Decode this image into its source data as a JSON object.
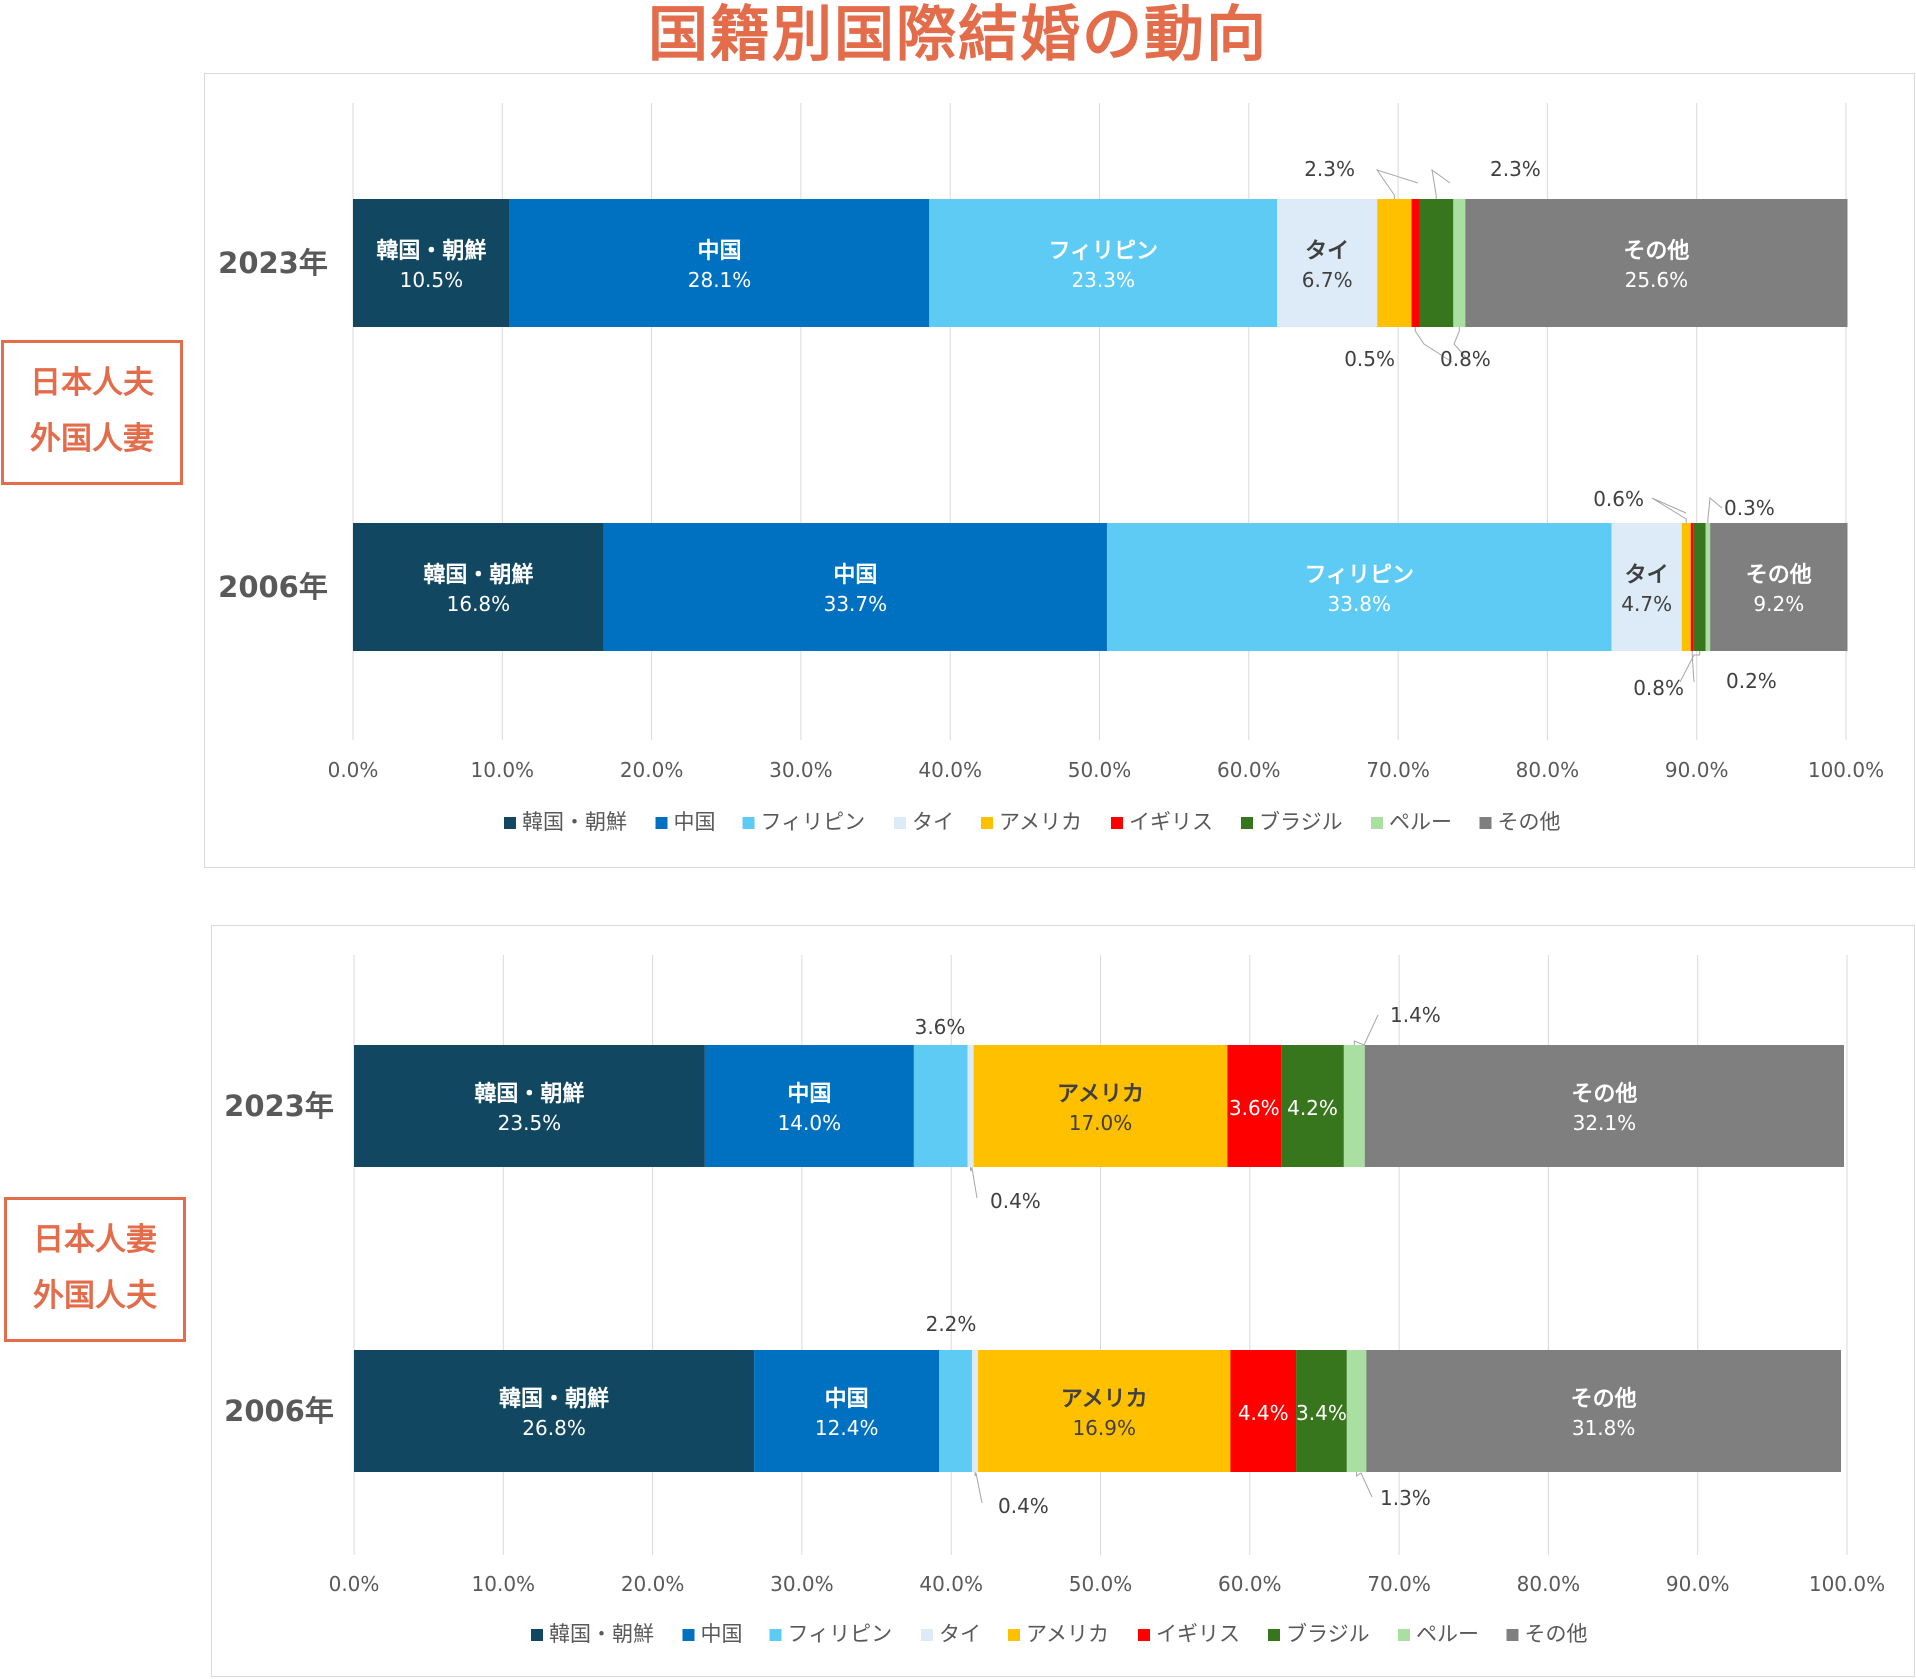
{
  "title": "国籍別国際結婚の動向",
  "colors": {
    "title": "#e36c4b",
    "韓国・朝鮮": "#124761",
    "中国": "#0070c0",
    "フィリピン": "#5ecbf5",
    "タイ": "#dcebf7",
    "アメリカ": "#ffc000",
    "イギリス": "#ff0000",
    "ブラジル": "#38761d",
    "ペルー": "#a9dfa0",
    "その他": "#7f7f7f",
    "grid": "#d9d9d9",
    "axis_text": "#595959",
    "year_text": "#595959"
  },
  "panels": [
    {
      "label_line1": "日本人夫",
      "label_line2": "外国人妻"
    },
    {
      "label_line1": "日本人妻",
      "label_line2": "外国人夫"
    }
  ],
  "chart_data": [
    {
      "type": "bar",
      "stacked": true,
      "orientation": "horizontal",
      "title": "",
      "categories": [
        "2023年",
        "2006年"
      ],
      "series": [
        {
          "name": "韓国・朝鮮",
          "values": [
            10.5,
            16.8
          ]
        },
        {
          "name": "中国",
          "values": [
            28.1,
            33.7
          ]
        },
        {
          "name": "フィリピン",
          "values": [
            23.3,
            33.8
          ]
        },
        {
          "name": "タイ",
          "values": [
            6.7,
            4.7
          ]
        },
        {
          "name": "アメリカ",
          "values": [
            2.3,
            0.6
          ]
        },
        {
          "name": "イギリス",
          "values": [
            0.5,
            0.2
          ]
        },
        {
          "name": "ブラジル",
          "values": [
            2.3,
            0.8
          ]
        },
        {
          "name": "ペルー",
          "values": [
            0.8,
            0.3
          ]
        },
        {
          "name": "その他",
          "values": [
            25.6,
            9.2
          ]
        }
      ],
      "xlim": [
        0,
        100
      ],
      "x_ticks": [
        "0.0%",
        "10.0%",
        "20.0%",
        "30.0%",
        "40.0%",
        "50.0%",
        "60.0%",
        "70.0%",
        "80.0%",
        "90.0%",
        "100.0%"
      ],
      "grid": true,
      "legend": "bottom"
    },
    {
      "type": "bar",
      "stacked": true,
      "orientation": "horizontal",
      "title": "",
      "categories": [
        "2023年",
        "2006年"
      ],
      "series": [
        {
          "name": "韓国・朝鮮",
          "values": [
            23.5,
            26.8
          ]
        },
        {
          "name": "中国",
          "values": [
            14.0,
            12.4
          ]
        },
        {
          "name": "フィリピン",
          "values": [
            3.6,
            2.2
          ]
        },
        {
          "name": "タイ",
          "values": [
            0.4,
            0.4
          ]
        },
        {
          "name": "アメリカ",
          "values": [
            17.0,
            16.9
          ]
        },
        {
          "name": "イギリス",
          "values": [
            3.6,
            4.4
          ]
        },
        {
          "name": "ブラジル",
          "values": [
            4.2,
            3.4
          ]
        },
        {
          "name": "ペルー",
          "values": [
            1.4,
            1.3
          ]
        },
        {
          "name": "その他",
          "values": [
            32.1,
            31.8
          ]
        }
      ],
      "xlim": [
        0,
        100
      ],
      "x_ticks": [
        "0.0%",
        "10.0%",
        "20.0%",
        "30.0%",
        "40.0%",
        "50.0%",
        "60.0%",
        "70.0%",
        "80.0%",
        "90.0%",
        "100.0%"
      ],
      "grid": true,
      "legend": "bottom"
    }
  ]
}
